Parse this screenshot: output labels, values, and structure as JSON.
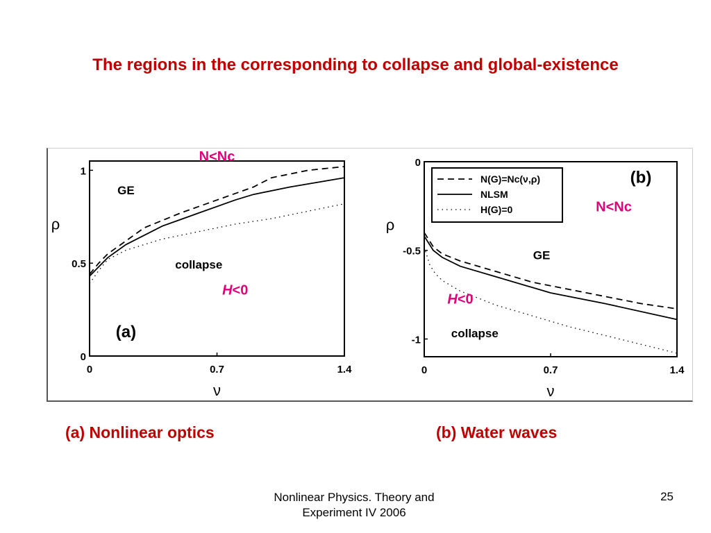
{
  "slide": {
    "title": "The regions in the corresponding to collapse and global-existence",
    "caption_a": "(a) Nonlinear optics",
    "caption_b": "(b) Water waves",
    "footer_line1": "Nonlinear Physics. Theory and",
    "footer_line2": "Experiment IV 2006",
    "page_number": "25"
  },
  "colors": {
    "title": "#c00000",
    "annotation": "#e0007a",
    "ink": "#000000"
  },
  "chart_data": [
    {
      "type": "line",
      "panel": "(a)",
      "xlabel": "ν",
      "ylabel": "ρ",
      "xlim": [
        0,
        1.4
      ],
      "ylim": [
        0,
        1.05
      ],
      "xticks": [
        0,
        0.7,
        1.4
      ],
      "xtick_labels": [
        "0",
        "0.7",
        "1.4"
      ],
      "yticks": [
        0,
        0.5,
        1
      ],
      "ytick_labels": [
        "0",
        "0.5",
        "1"
      ],
      "grid": false,
      "legend": null,
      "annotations": [
        {
          "text": "N<Nc",
          "color": "#e0007a",
          "x": 0.7,
          "y": 1.05
        },
        {
          "text": "GE",
          "color": "#000000",
          "x": 0.2,
          "y": 0.87
        },
        {
          "text": "collapse",
          "color": "#000000",
          "x": 0.6,
          "y": 0.47
        },
        {
          "text": "H<0",
          "color": "#e0007a",
          "x": 0.8,
          "y": 0.33
        },
        {
          "text": "(a)",
          "color": "#000000",
          "x": 0.2,
          "y": 0.1
        }
      ],
      "series": [
        {
          "style": "dashed",
          "x": [
            0,
            0.05,
            0.1,
            0.2,
            0.3,
            0.5,
            0.7,
            0.9,
            1.0,
            1.2,
            1.4
          ],
          "y": [
            0.44,
            0.5,
            0.55,
            0.62,
            0.69,
            0.77,
            0.84,
            0.91,
            0.96,
            1.0,
            1.02
          ]
        },
        {
          "style": "solid",
          "x": [
            0,
            0.05,
            0.1,
            0.2,
            0.4,
            0.6,
            0.8,
            0.9,
            1.1,
            1.4
          ],
          "y": [
            0.43,
            0.48,
            0.53,
            0.6,
            0.7,
            0.77,
            0.84,
            0.87,
            0.91,
            0.96
          ]
        },
        {
          "style": "dotted",
          "x": [
            0,
            0.05,
            0.1,
            0.2,
            0.4,
            0.6,
            0.8,
            1.0,
            1.2,
            1.4
          ],
          "y": [
            0.39,
            0.46,
            0.52,
            0.57,
            0.63,
            0.67,
            0.71,
            0.74,
            0.78,
            0.82
          ]
        }
      ]
    },
    {
      "type": "line",
      "panel": "(b)",
      "xlabel": "ν",
      "ylabel": "ρ",
      "xlim": [
        0,
        1.4
      ],
      "ylim": [
        -1.1,
        0
      ],
      "xticks": [
        0,
        0.7,
        1.4
      ],
      "xtick_labels": [
        "0",
        "0.7",
        "1.4"
      ],
      "yticks": [
        0,
        -0.5,
        -1
      ],
      "ytick_labels": [
        "0",
        "-0.5",
        "-1"
      ],
      "grid": false,
      "legend": {
        "placement": "top-left",
        "entries": [
          {
            "label": "N(G)=Nc(ν,ρ)",
            "style": "dashed"
          },
          {
            "label": "NLSM",
            "style": "solid"
          },
          {
            "label": "H(G)=0",
            "style": "dotted"
          }
        ]
      },
      "annotations": [
        {
          "text": "(b)",
          "color": "#000000",
          "x": 1.2,
          "y": -0.12
        },
        {
          "text": "N<Nc",
          "color": "#e0007a",
          "x": 1.05,
          "y": -0.28
        },
        {
          "text": "GE",
          "color": "#000000",
          "x": 0.65,
          "y": -0.55
        },
        {
          "text": "H<0",
          "color": "#e0007a",
          "x": 0.2,
          "y": -0.8
        },
        {
          "text": "collapse",
          "color": "#000000",
          "x": 0.28,
          "y": -0.99
        }
      ],
      "series": [
        {
          "style": "dashed",
          "x": [
            0,
            0.05,
            0.1,
            0.2,
            0.4,
            0.6,
            0.8,
            1.0,
            1.2,
            1.4
          ],
          "y": [
            -0.4,
            -0.48,
            -0.52,
            -0.56,
            -0.62,
            -0.68,
            -0.72,
            -0.76,
            -0.8,
            -0.83
          ]
        },
        {
          "style": "solid",
          "x": [
            0,
            0.05,
            0.1,
            0.2,
            0.4,
            0.7,
            1.0,
            1.4
          ],
          "y": [
            -0.42,
            -0.5,
            -0.54,
            -0.59,
            -0.65,
            -0.74,
            -0.8,
            -0.89
          ]
        },
        {
          "style": "dotted",
          "x": [
            0,
            0.03,
            0.06,
            0.1,
            0.2,
            0.4,
            0.6,
            0.8,
            1.0,
            1.2,
            1.4
          ],
          "y": [
            -0.48,
            -0.58,
            -0.63,
            -0.67,
            -0.73,
            -0.81,
            -0.87,
            -0.93,
            -0.98,
            -1.03,
            -1.08
          ]
        }
      ]
    }
  ]
}
